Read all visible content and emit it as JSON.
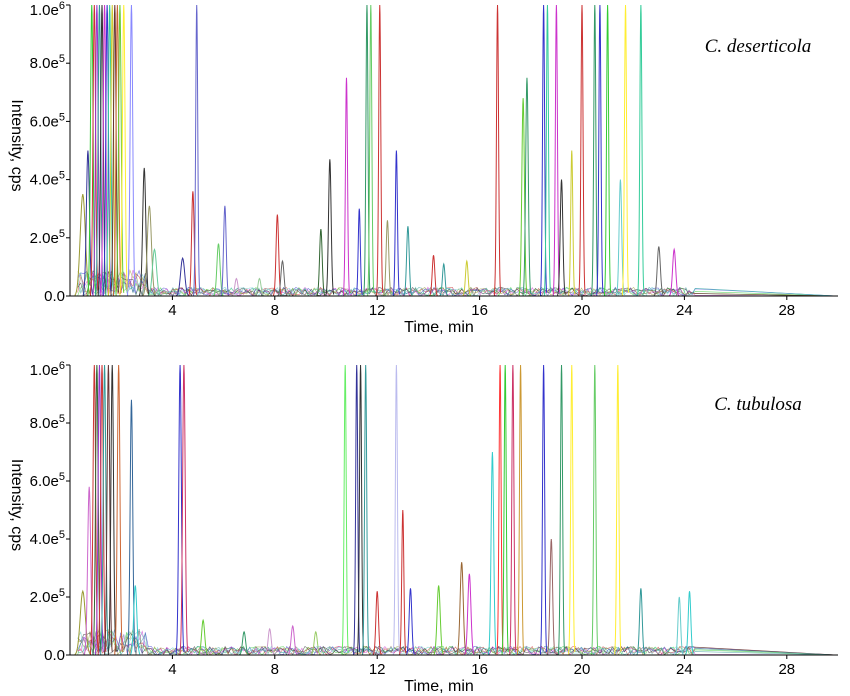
{
  "chart_data": [
    {
      "type": "line",
      "title": "C. deserticola",
      "xlabel": "Time, min",
      "ylabel": "Intensity, cps",
      "xlim": [
        0,
        30
      ],
      "ylim": [
        0,
        1000000
      ],
      "x_ticks": [
        4,
        8,
        12,
        16,
        20,
        24,
        28
      ],
      "y_ticks": [
        {
          "value": 0,
          "mantissa": "0.0",
          "exp": ""
        },
        {
          "value": 200000,
          "mantissa": "2.0e",
          "exp": "5"
        },
        {
          "value": 400000,
          "mantissa": "4.0e",
          "exp": "5"
        },
        {
          "value": 600000,
          "mantissa": "6.0e",
          "exp": "5"
        },
        {
          "value": 800000,
          "mantissa": "8.0e",
          "exp": "5"
        },
        {
          "value": 1000000,
          "mantissa": "1.0e",
          "exp": "6"
        }
      ],
      "grid": false,
      "peaks": [
        {
          "x": 0.5,
          "y": 350000,
          "w": 0.1,
          "c": "#999933"
        },
        {
          "x": 0.7,
          "y": 500000,
          "w": 0.06,
          "c": "#333399"
        },
        {
          "x": 0.85,
          "y": 1000000,
          "w": 0.05,
          "c": "#33cc33"
        },
        {
          "x": 0.95,
          "y": 1000000,
          "w": 0.05,
          "c": "#cc3333"
        },
        {
          "x": 1.05,
          "y": 1000000,
          "w": 0.05,
          "c": "#9933cc"
        },
        {
          "x": 1.15,
          "y": 1000000,
          "w": 0.05,
          "c": "#339999"
        },
        {
          "x": 1.25,
          "y": 1000000,
          "w": 0.05,
          "c": "#333333"
        },
        {
          "x": 1.35,
          "y": 1000000,
          "w": 0.05,
          "c": "#cc33cc"
        },
        {
          "x": 1.45,
          "y": 1000000,
          "w": 0.05,
          "c": "#3333cc"
        },
        {
          "x": 1.55,
          "y": 1000000,
          "w": 0.05,
          "c": "#33cc99"
        },
        {
          "x": 1.65,
          "y": 1000000,
          "w": 0.05,
          "c": "#cccc33"
        },
        {
          "x": 1.75,
          "y": 1000000,
          "w": 0.05,
          "c": "#663333"
        },
        {
          "x": 1.85,
          "y": 1000000,
          "w": 0.05,
          "c": "#cc6633"
        },
        {
          "x": 1.95,
          "y": 1000000,
          "w": 0.05,
          "c": "#66cc33"
        },
        {
          "x": 2.1,
          "y": 1000000,
          "w": 0.05,
          "c": "#ffee33"
        },
        {
          "x": 2.4,
          "y": 1000000,
          "w": 0.05,
          "c": "#8888ff"
        },
        {
          "x": 2.9,
          "y": 440000,
          "w": 0.06,
          "c": "#333333"
        },
        {
          "x": 3.1,
          "y": 310000,
          "w": 0.08,
          "c": "#999966"
        },
        {
          "x": 3.3,
          "y": 160000,
          "w": 0.08,
          "c": "#66cc99"
        },
        {
          "x": 4.4,
          "y": 130000,
          "w": 0.08,
          "c": "#333399"
        },
        {
          "x": 4.8,
          "y": 360000,
          "w": 0.05,
          "c": "#cc3333"
        },
        {
          "x": 4.95,
          "y": 1000000,
          "w": 0.04,
          "c": "#6666cc"
        },
        {
          "x": 5.8,
          "y": 180000,
          "w": 0.06,
          "c": "#66cc66"
        },
        {
          "x": 6.05,
          "y": 310000,
          "w": 0.05,
          "c": "#6666cc"
        },
        {
          "x": 6.5,
          "y": 60000,
          "w": 0.06,
          "c": "#cc99cc"
        },
        {
          "x": 7.4,
          "y": 60000,
          "w": 0.06,
          "c": "#99cc99"
        },
        {
          "x": 8.1,
          "y": 280000,
          "w": 0.05,
          "c": "#cc3333"
        },
        {
          "x": 8.3,
          "y": 120000,
          "w": 0.06,
          "c": "#666666"
        },
        {
          "x": 9.8,
          "y": 230000,
          "w": 0.05,
          "c": "#336633"
        },
        {
          "x": 10.15,
          "y": 470000,
          "w": 0.05,
          "c": "#333333"
        },
        {
          "x": 10.8,
          "y": 750000,
          "w": 0.04,
          "c": "#cc33cc"
        },
        {
          "x": 11.3,
          "y": 300000,
          "w": 0.04,
          "c": "#3333cc"
        },
        {
          "x": 11.6,
          "y": 1000000,
          "w": 0.04,
          "c": "#339966"
        },
        {
          "x": 11.75,
          "y": 1000000,
          "w": 0.04,
          "c": "#66cc66"
        },
        {
          "x": 12.1,
          "y": 1000000,
          "w": 0.04,
          "c": "#cc3333"
        },
        {
          "x": 12.4,
          "y": 260000,
          "w": 0.05,
          "c": "#999966"
        },
        {
          "x": 12.75,
          "y": 500000,
          "w": 0.04,
          "c": "#3333cc"
        },
        {
          "x": 13.2,
          "y": 240000,
          "w": 0.05,
          "c": "#339999"
        },
        {
          "x": 14.2,
          "y": 140000,
          "w": 0.05,
          "c": "#cc3333"
        },
        {
          "x": 14.6,
          "y": 110000,
          "w": 0.05,
          "c": "#339999"
        },
        {
          "x": 15.5,
          "y": 120000,
          "w": 0.05,
          "c": "#cccc33"
        },
        {
          "x": 16.7,
          "y": 1000000,
          "w": 0.04,
          "c": "#cc3333"
        },
        {
          "x": 17.7,
          "y": 680000,
          "w": 0.05,
          "c": "#66cc33"
        },
        {
          "x": 17.85,
          "y": 750000,
          "w": 0.05,
          "c": "#339966"
        },
        {
          "x": 18.5,
          "y": 1000000,
          "w": 0.04,
          "c": "#3333cc"
        },
        {
          "x": 18.65,
          "y": 1000000,
          "w": 0.04,
          "c": "#33cc99"
        },
        {
          "x": 19.0,
          "y": 1000000,
          "w": 0.04,
          "c": "#cc33cc"
        },
        {
          "x": 19.2,
          "y": 400000,
          "w": 0.05,
          "c": "#333333"
        },
        {
          "x": 19.6,
          "y": 500000,
          "w": 0.04,
          "c": "#cccc33"
        },
        {
          "x": 20.0,
          "y": 1000000,
          "w": 0.04,
          "c": "#cc3333"
        },
        {
          "x": 20.5,
          "y": 1000000,
          "w": 0.04,
          "c": "#339966"
        },
        {
          "x": 20.7,
          "y": 1000000,
          "w": 0.04,
          "c": "#3333cc"
        },
        {
          "x": 21.0,
          "y": 1000000,
          "w": 0.04,
          "c": "#33cc33"
        },
        {
          "x": 21.5,
          "y": 400000,
          "w": 0.05,
          "c": "#66cccc"
        },
        {
          "x": 21.7,
          "y": 1000000,
          "w": 0.04,
          "c": "#ffee33"
        },
        {
          "x": 22.3,
          "y": 1000000,
          "w": 0.04,
          "c": "#33cc99"
        },
        {
          "x": 23.0,
          "y": 170000,
          "w": 0.06,
          "c": "#666666"
        },
        {
          "x": 23.6,
          "y": 160000,
          "w": 0.06,
          "c": "#cc33cc"
        }
      ],
      "baseline_noise": {
        "start": 0.3,
        "end": 24.5,
        "max": 30000
      }
    },
    {
      "type": "line",
      "title": "C. tubulosa",
      "xlabel": "Time, min",
      "ylabel": "Intensity, cps",
      "xlim": [
        0,
        30
      ],
      "ylim": [
        0,
        1000000
      ],
      "x_ticks": [
        4,
        8,
        12,
        16,
        20,
        24,
        28
      ],
      "y_ticks": [
        {
          "value": 0,
          "mantissa": "0.0",
          "exp": ""
        },
        {
          "value": 200000,
          "mantissa": "2.0e",
          "exp": "5"
        },
        {
          "value": 400000,
          "mantissa": "4.0e",
          "exp": "5"
        },
        {
          "value": 600000,
          "mantissa": "6.0e",
          "exp": "5"
        },
        {
          "value": 800000,
          "mantissa": "8.0e",
          "exp": "5"
        },
        {
          "value": 1000000,
          "mantissa": "1.0e",
          "exp": "6"
        }
      ],
      "grid": false,
      "peaks": [
        {
          "x": 0.5,
          "y": 220000,
          "w": 0.1,
          "c": "#999933"
        },
        {
          "x": 0.75,
          "y": 580000,
          "w": 0.06,
          "c": "#cc66cc"
        },
        {
          "x": 0.95,
          "y": 1000000,
          "w": 0.05,
          "c": "#cc3333"
        },
        {
          "x": 1.05,
          "y": 1000000,
          "w": 0.05,
          "c": "#336633"
        },
        {
          "x": 1.15,
          "y": 1000000,
          "w": 0.05,
          "c": "#9933cc"
        },
        {
          "x": 1.25,
          "y": 1000000,
          "w": 0.05,
          "c": "#cc3333"
        },
        {
          "x": 1.35,
          "y": 1000000,
          "w": 0.05,
          "c": "#339999"
        },
        {
          "x": 1.5,
          "y": 1000000,
          "w": 0.05,
          "c": "#663333"
        },
        {
          "x": 1.65,
          "y": 1000000,
          "w": 0.05,
          "c": "#333333"
        },
        {
          "x": 1.9,
          "y": 1000000,
          "w": 0.05,
          "c": "#cc6633"
        },
        {
          "x": 2.4,
          "y": 880000,
          "w": 0.05,
          "c": "#336699"
        },
        {
          "x": 2.55,
          "y": 240000,
          "w": 0.06,
          "c": "#33cccc"
        },
        {
          "x": 4.3,
          "y": 1000000,
          "w": 0.05,
          "c": "#3333cc"
        },
        {
          "x": 4.45,
          "y": 1000000,
          "w": 0.05,
          "c": "#cc3366"
        },
        {
          "x": 5.2,
          "y": 120000,
          "w": 0.06,
          "c": "#66cc33"
        },
        {
          "x": 6.8,
          "y": 80000,
          "w": 0.06,
          "c": "#339966"
        },
        {
          "x": 7.8,
          "y": 90000,
          "w": 0.06,
          "c": "#cc99cc"
        },
        {
          "x": 8.7,
          "y": 100000,
          "w": 0.06,
          "c": "#cc66cc"
        },
        {
          "x": 9.6,
          "y": 80000,
          "w": 0.06,
          "c": "#99cc66"
        },
        {
          "x": 10.75,
          "y": 1000000,
          "w": 0.04,
          "c": "#66ee66"
        },
        {
          "x": 11.2,
          "y": 1000000,
          "w": 0.04,
          "c": "#333399"
        },
        {
          "x": 11.35,
          "y": 1000000,
          "w": 0.04,
          "c": "#333333"
        },
        {
          "x": 11.55,
          "y": 1000000,
          "w": 0.04,
          "c": "#339999"
        },
        {
          "x": 12.0,
          "y": 220000,
          "w": 0.05,
          "c": "#cc3333"
        },
        {
          "x": 12.75,
          "y": 1000000,
          "w": 0.04,
          "c": "#bbbbee"
        },
        {
          "x": 13.0,
          "y": 500000,
          "w": 0.04,
          "c": "#cc3333"
        },
        {
          "x": 13.3,
          "y": 230000,
          "w": 0.05,
          "c": "#3333cc"
        },
        {
          "x": 14.4,
          "y": 240000,
          "w": 0.06,
          "c": "#66cc33"
        },
        {
          "x": 15.3,
          "y": 320000,
          "w": 0.06,
          "c": "#996633"
        },
        {
          "x": 15.6,
          "y": 280000,
          "w": 0.06,
          "c": "#cc33cc"
        },
        {
          "x": 16.5,
          "y": 700000,
          "w": 0.05,
          "c": "#33cccc"
        },
        {
          "x": 16.8,
          "y": 1000000,
          "w": 0.04,
          "c": "#ff3333"
        },
        {
          "x": 17.0,
          "y": 1000000,
          "w": 0.04,
          "c": "#33cc33"
        },
        {
          "x": 17.3,
          "y": 1000000,
          "w": 0.04,
          "c": "#cc3366"
        },
        {
          "x": 17.6,
          "y": 1000000,
          "w": 0.04,
          "c": "#cc9933"
        },
        {
          "x": 18.5,
          "y": 1000000,
          "w": 0.04,
          "c": "#3333cc"
        },
        {
          "x": 18.8,
          "y": 400000,
          "w": 0.05,
          "c": "#996666"
        },
        {
          "x": 19.2,
          "y": 1000000,
          "w": 0.04,
          "c": "#339966"
        },
        {
          "x": 19.6,
          "y": 1000000,
          "w": 0.04,
          "c": "#ffee33"
        },
        {
          "x": 20.5,
          "y": 1000000,
          "w": 0.04,
          "c": "#66cc66"
        },
        {
          "x": 21.4,
          "y": 1000000,
          "w": 0.04,
          "c": "#ffee33"
        },
        {
          "x": 22.3,
          "y": 230000,
          "w": 0.05,
          "c": "#339999"
        },
        {
          "x": 23.8,
          "y": 200000,
          "w": 0.05,
          "c": "#66cccc"
        },
        {
          "x": 24.2,
          "y": 220000,
          "w": 0.05,
          "c": "#33cccc"
        }
      ],
      "baseline_noise": {
        "start": 0.3,
        "end": 24.5,
        "max": 30000
      }
    }
  ]
}
